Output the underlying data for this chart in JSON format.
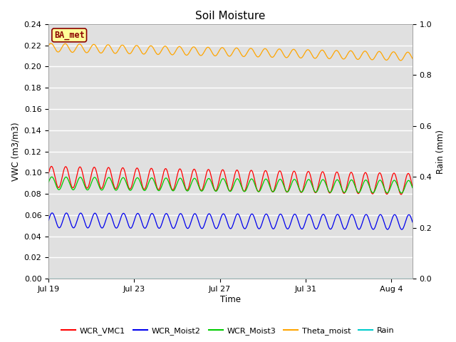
{
  "title": "Soil Moisture",
  "xlabel": "Time",
  "ylabel_left": "VWC (m3/m3)",
  "ylabel_right": "Rain (mm)",
  "ylim_left": [
    0.0,
    0.24
  ],
  "ylim_right": [
    0.0,
    1.0
  ],
  "yticks_left": [
    0.0,
    0.02,
    0.04,
    0.06,
    0.08,
    0.1,
    0.12,
    0.14,
    0.16,
    0.18,
    0.2,
    0.22,
    0.24
  ],
  "yticks_right": [
    0.0,
    0.2,
    0.4,
    0.6,
    0.8,
    1.0
  ],
  "xtick_labels": [
    "Jul 19",
    "Jul 23",
    "Jul 27",
    "Jul 31",
    "Aug 4"
  ],
  "xtick_positions": [
    0,
    4,
    8,
    12,
    16
  ],
  "xlim": [
    0,
    17
  ],
  "annotation_text": "BA_met",
  "annotation_color": "#8B0000",
  "annotation_bg": "#FFFF99",
  "annotation_border": "#8B0000",
  "bg_color": "#E0E0E0",
  "grid_color": "#FFFFFF",
  "series_WCR_VMC1_color": "#FF0000",
  "series_WCR_VMC1_base": 0.096,
  "series_WCR_VMC1_amp": 0.01,
  "series_WCR_VMC1_trend": -0.0004,
  "series_WCR_Moist2_color": "#0000EE",
  "series_WCR_Moist2_base": 0.055,
  "series_WCR_Moist2_amp": 0.007,
  "series_WCR_Moist2_trend": -0.0001,
  "series_WCR_Moist3_color": "#00CC00",
  "series_WCR_Moist3_base": 0.09,
  "series_WCR_Moist3_amp": 0.006,
  "series_WCR_Moist3_trend": -0.0002,
  "series_Theta_moist_color": "#FFA500",
  "series_Theta_moist_base": 0.218,
  "series_Theta_moist_amp": 0.004,
  "series_Theta_moist_trend": -0.0005,
  "series_Rain_color": "#00CCCC",
  "legend_entries": [
    "WCR_VMC1",
    "WCR_Moist2",
    "WCR_Moist3",
    "Theta_moist",
    "Rain"
  ],
  "legend_colors": [
    "#FF0000",
    "#0000EE",
    "#00CC00",
    "#FFA500",
    "#00CCCC"
  ],
  "n_points": 800,
  "cycles_per_day": 1.5,
  "total_days": 17
}
